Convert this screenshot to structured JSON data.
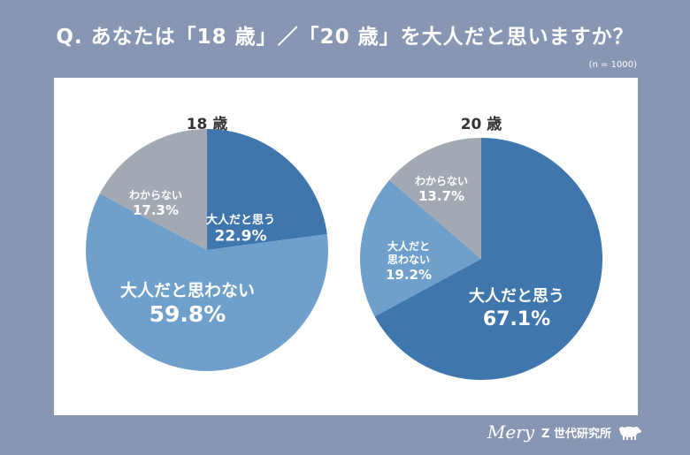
{
  "title": "Q. あなたは「18 歳」／「20 歳」を大人だと思いますか？",
  "note": "(n = 1000)",
  "colors": {
    "background": "#8796b3",
    "panel": "#ffffff",
    "adult": "#3f76ad",
    "not_adult": "#6f9fcb",
    "unknown": "#a3a9b3"
  },
  "footer": {
    "brand_script": "Mery",
    "brand_text": "Z 世代研究所",
    "logo_icon": "sheep-icon"
  },
  "chart_data": [
    {
      "type": "pie",
      "title": "18 歳",
      "slices": [
        {
          "label": "大人だと思う",
          "value": 22.9,
          "display": "22.9%",
          "color": "#3f76ad"
        },
        {
          "label": "大人だと思わない",
          "value": 59.8,
          "display": "59.8%",
          "color": "#6f9fcb"
        },
        {
          "label": "わからない",
          "value": 17.3,
          "display": "17.3%",
          "color": "#a3a9b3"
        }
      ]
    },
    {
      "type": "pie",
      "title": "20 歳",
      "slices": [
        {
          "label": "大人だと思う",
          "value": 67.1,
          "display": "67.1%",
          "color": "#3f76ad"
        },
        {
          "label": "大人だと思わない",
          "value": 19.2,
          "display": "19.2%",
          "color": "#6f9fcb"
        },
        {
          "label": "わからない",
          "value": 13.7,
          "display": "13.7%",
          "color": "#a3a9b3"
        }
      ]
    }
  ]
}
